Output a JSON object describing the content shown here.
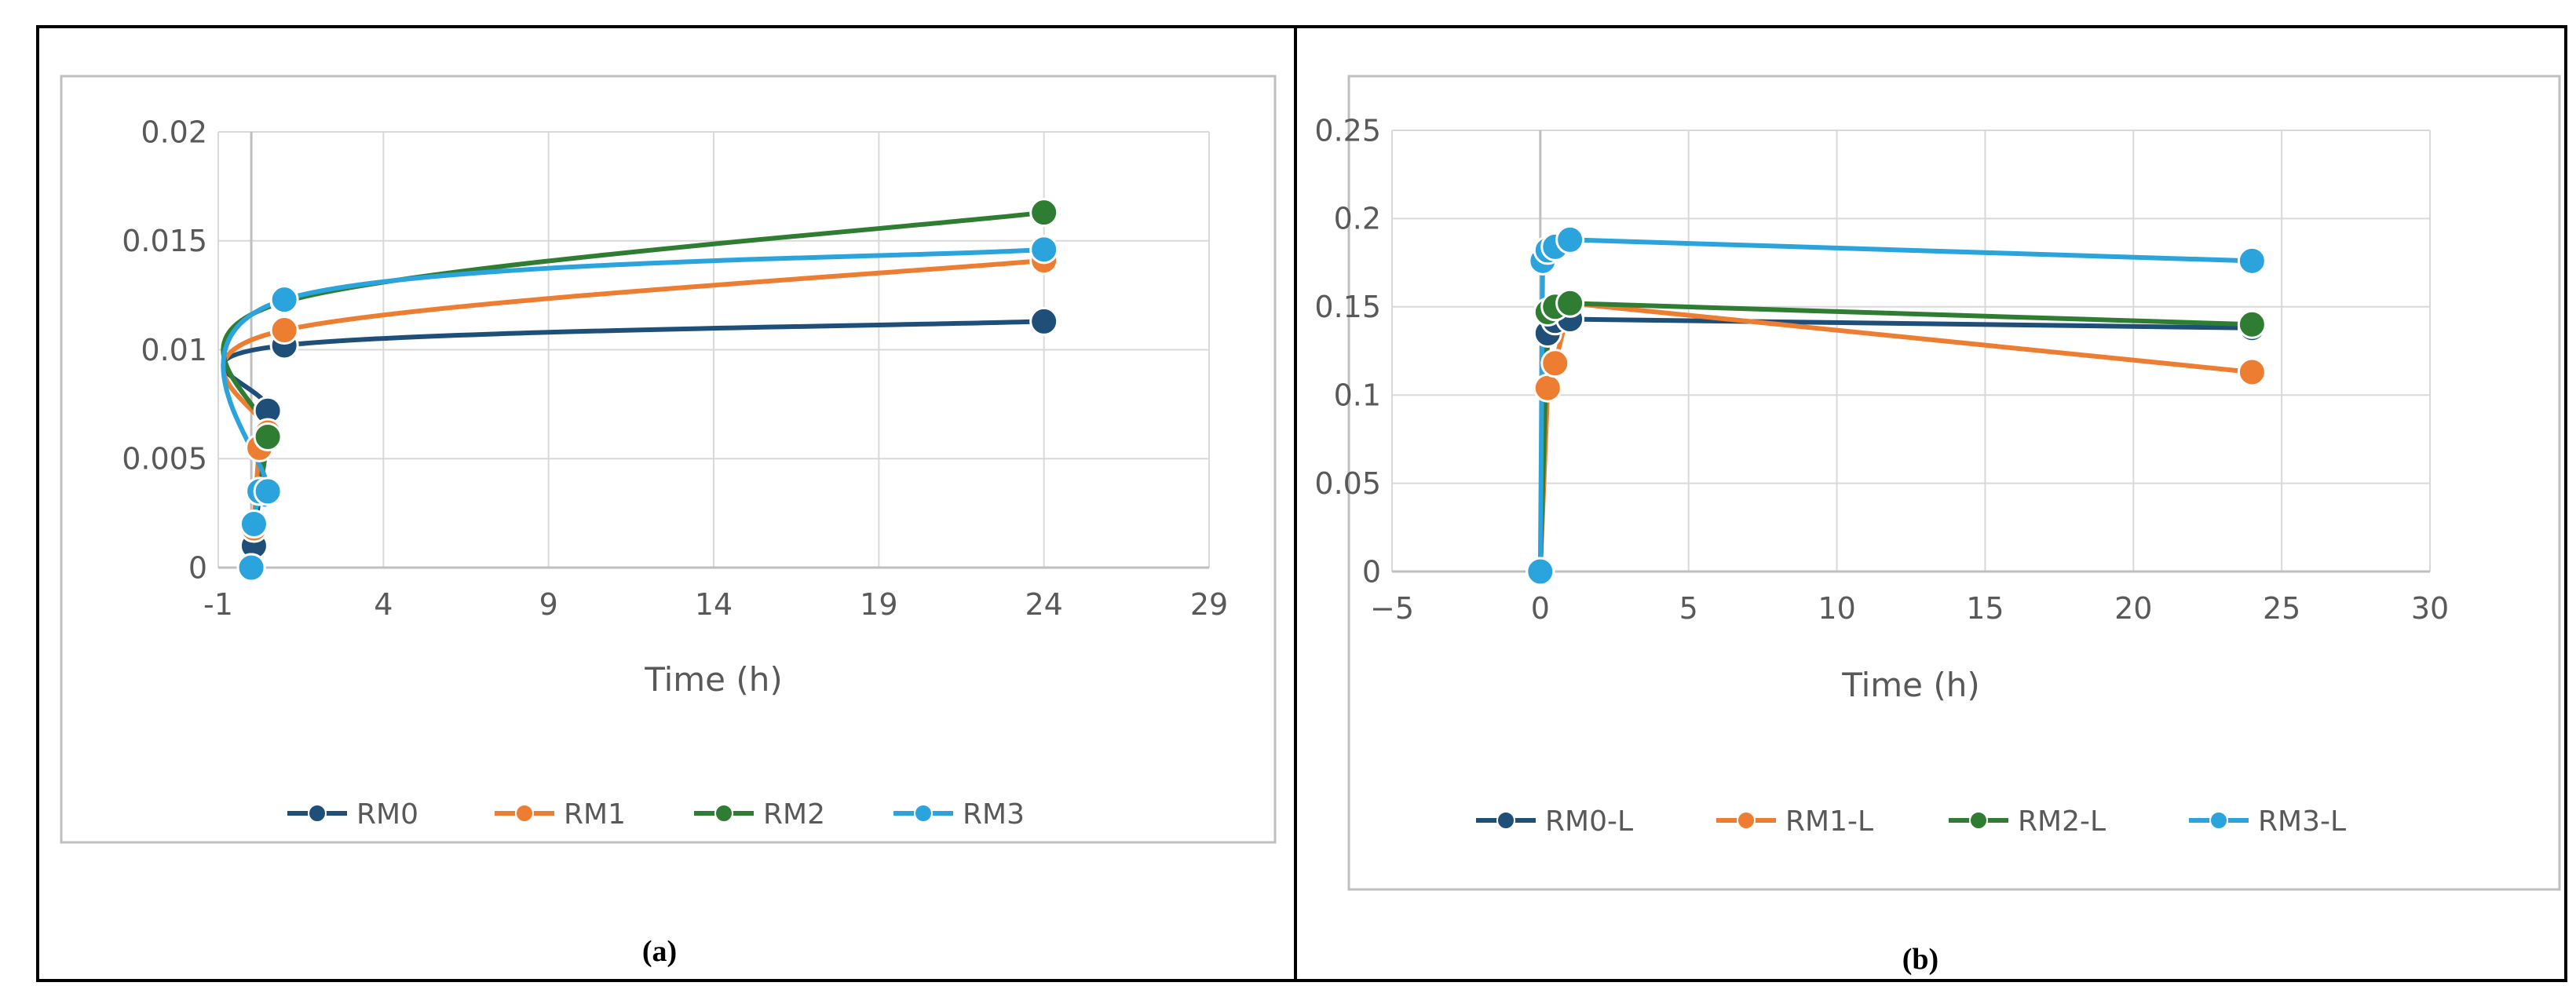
{
  "panels": [
    {
      "caption": "(a)"
    },
    {
      "caption": "(b)"
    }
  ],
  "chart_data": [
    {
      "type": "scatter",
      "smooth": true,
      "xlabel": "Time (h)",
      "ylabel": "",
      "xlim": [
        -1,
        29
      ],
      "ylim": [
        0,
        0.02
      ],
      "xticks": [
        "-1",
        "4",
        "9",
        "14",
        "19",
        "24",
        "29"
      ],
      "yticks": [
        "0",
        "0.005",
        "0.01",
        "0.015",
        "0.02"
      ],
      "grid": true,
      "legend_position": "bottom",
      "series": [
        {
          "name": "RM0",
          "color": "#1F4E79",
          "x": [
            0,
            0.08,
            0.25,
            0.5,
            1,
            24
          ],
          "y": [
            0,
            0.001,
            0.0035,
            0.0072,
            0.0102,
            0.0113
          ]
        },
        {
          "name": "RM1",
          "color": "#ED7D31",
          "x": [
            0,
            0.08,
            0.25,
            0.5,
            1,
            24
          ],
          "y": [
            0,
            0.0018,
            0.0055,
            0.0062,
            0.0109,
            0.0141
          ]
        },
        {
          "name": "RM2",
          "color": "#2E7D32",
          "x": [
            0,
            0.08,
            0.25,
            0.5,
            1,
            24
          ],
          "y": [
            0,
            0.002,
            0.0035,
            0.006,
            0.0122,
            0.0163
          ]
        },
        {
          "name": "RM3",
          "color": "#2BA3DC",
          "x": [
            0,
            0.08,
            0.25,
            0.5,
            1,
            24
          ],
          "y": [
            0,
            0.002,
            0.0035,
            0.0035,
            0.0123,
            0.0146
          ]
        }
      ]
    },
    {
      "type": "scatter",
      "smooth": false,
      "xlabel": "Time (h)",
      "ylabel": "",
      "xlim": [
        -5,
        30
      ],
      "ylim": [
        0,
        0.25
      ],
      "xticks": [
        "−5",
        "0",
        "5",
        "10",
        "15",
        "20",
        "25",
        "30"
      ],
      "yticks": [
        "0",
        "0.05",
        "0.1",
        "0.15",
        "0.2",
        "0.25"
      ],
      "grid": true,
      "legend_position": "bottom",
      "series": [
        {
          "name": "RM0-L",
          "color": "#1F4E79",
          "x": [
            0,
            0.25,
            0.5,
            1,
            24
          ],
          "y": [
            0,
            0.135,
            0.142,
            0.143,
            0.138
          ]
        },
        {
          "name": "RM1-L",
          "color": "#ED7D31",
          "x": [
            0,
            0.25,
            0.5,
            1,
            24
          ],
          "y": [
            0,
            0.104,
            0.118,
            0.152,
            0.113
          ]
        },
        {
          "name": "RM2-L",
          "color": "#2E7D32",
          "x": [
            0,
            0.25,
            0.5,
            1,
            24
          ],
          "y": [
            0,
            0.147,
            0.15,
            0.152,
            0.14
          ]
        },
        {
          "name": "RM3-L",
          "color": "#2BA3DC",
          "x": [
            0,
            0.08,
            0.25,
            0.5,
            1,
            24
          ],
          "y": [
            0,
            0.176,
            0.182,
            0.184,
            0.188,
            0.176
          ]
        }
      ]
    }
  ]
}
